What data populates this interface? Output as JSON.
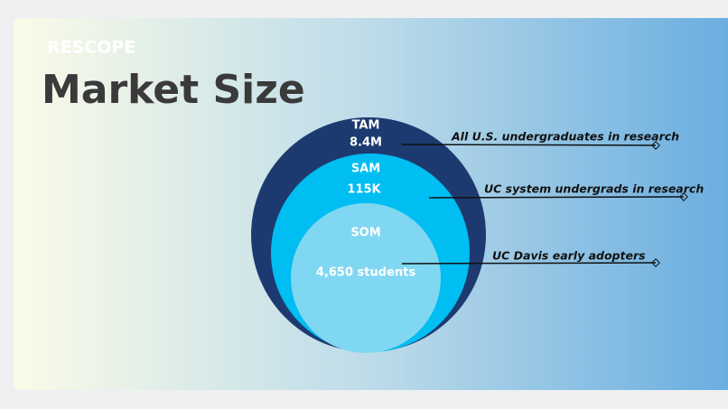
{
  "logo": "RESCOPE",
  "title": "Market Size",
  "segments": [
    {
      "label": "TAM",
      "value": "8.4M",
      "description": "All U.S. undergraduates in research"
    },
    {
      "label": "SAM",
      "value": "115K",
      "description": "UC system undergrads in research"
    },
    {
      "label": "SOM",
      "value": "4,650 students",
      "description": "UC Davis early adopters"
    }
  ]
}
